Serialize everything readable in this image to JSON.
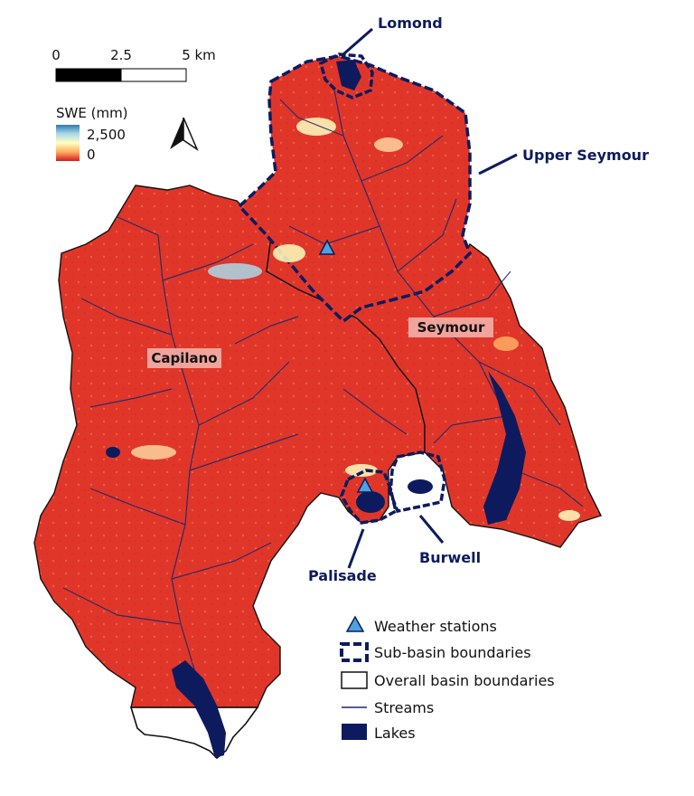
{
  "scale_bar": {
    "ticks": [
      "0",
      "2.5",
      "5 km"
    ]
  },
  "swe_legend": {
    "title": "SWE (mm)",
    "max_label": "2,500",
    "min_label": "0",
    "gradient_colors": [
      "#2c7bb6",
      "#abd9e9",
      "#ffffbf",
      "#fdae61",
      "#d7191c"
    ]
  },
  "north_arrow": {
    "icon": "north-arrow-icon"
  },
  "basins": {
    "capilano": "Capilano",
    "seymour": "Seymour"
  },
  "sub_basins": {
    "lomond": "Lomond",
    "upper_seymour": "Upper Seymour",
    "palisade": "Palisade",
    "burwell": "Burwell"
  },
  "legend": {
    "weather_stations": "Weather stations",
    "sub_basin_boundaries": "Sub-basin boundaries",
    "overall_basin_boundaries": "Overall basin boundaries",
    "streams": "Streams",
    "lakes": "Lakes"
  },
  "colors": {
    "swe_low": "#e0362a",
    "boundary_navy": "#0d1b5e",
    "lake": "#0d1b5e",
    "station": "#4aa3df",
    "label_bg": "#f3b7b0"
  }
}
